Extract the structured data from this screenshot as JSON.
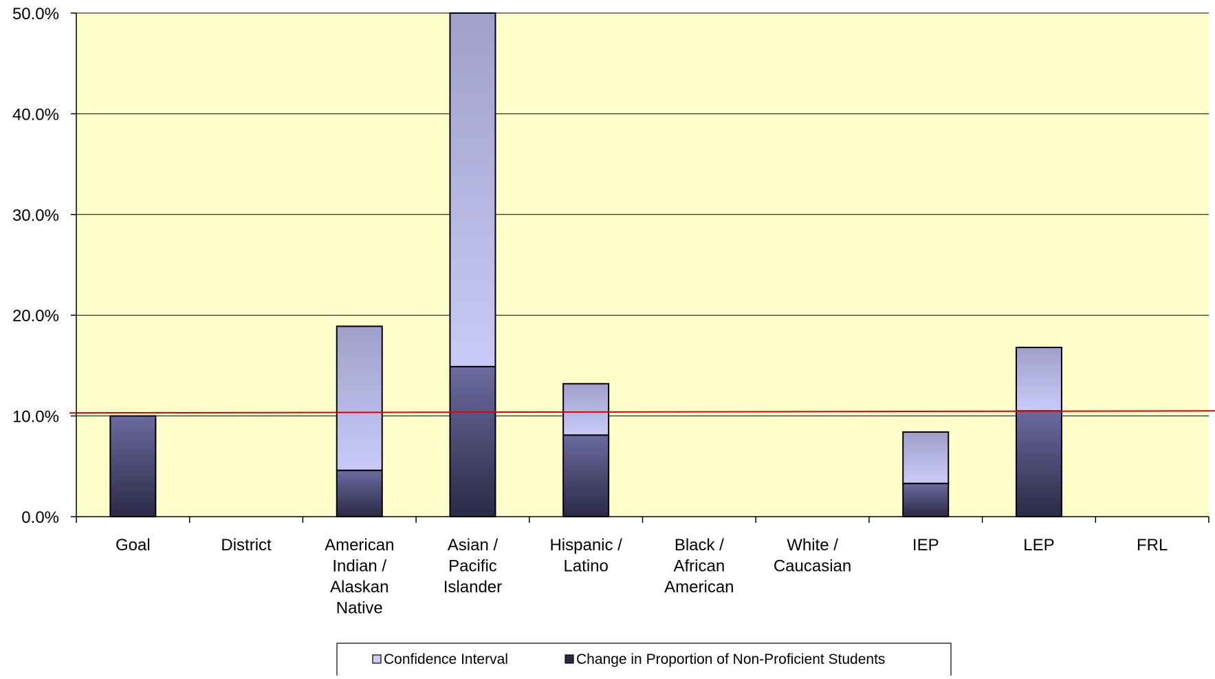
{
  "chart_data": {
    "type": "bar",
    "stacked": true,
    "categories": [
      [
        "Goal"
      ],
      [
        "District"
      ],
      [
        "American",
        "Indian /",
        "Alaskan",
        "Native"
      ],
      [
        "Asian /",
        "Pacific",
        "Islander"
      ],
      [
        "Hispanic /",
        "Latino"
      ],
      [
        "Black /",
        "African",
        "American"
      ],
      [
        "White /",
        "Caucasian"
      ],
      [
        "IEP"
      ],
      [
        "LEP"
      ],
      [
        "FRL"
      ]
    ],
    "series": [
      {
        "name": "Change in Proportion of Non-Proficient Students",
        "values": [
          10.0,
          null,
          4.6,
          14.9,
          8.1,
          null,
          null,
          3.3,
          10.5,
          null
        ],
        "color_top": "#6b6aa0",
        "color_bottom": "#2b2a45"
      },
      {
        "name": "Confidence Interval",
        "values": [
          null,
          null,
          14.3,
          35.1,
          5.1,
          null,
          null,
          5.1,
          6.3,
          null
        ],
        "color_top": "#a09fcb",
        "color_bottom": "#cacaf8"
      }
    ],
    "legend_order": [
      "Confidence Interval",
      "Change in Proportion of Non-Proficient Students"
    ],
    "yticks": [
      "0.0%",
      "10.0%",
      "20.0%",
      "30.0%",
      "40.0%",
      "50.0%"
    ],
    "ylim": [
      0,
      50
    ],
    "reference_line": {
      "value": 10.3,
      "value_end": 10.5,
      "color": "#e00000"
    },
    "plot_background": "#ffffcc",
    "grid": true,
    "legend_position": "bottom"
  }
}
